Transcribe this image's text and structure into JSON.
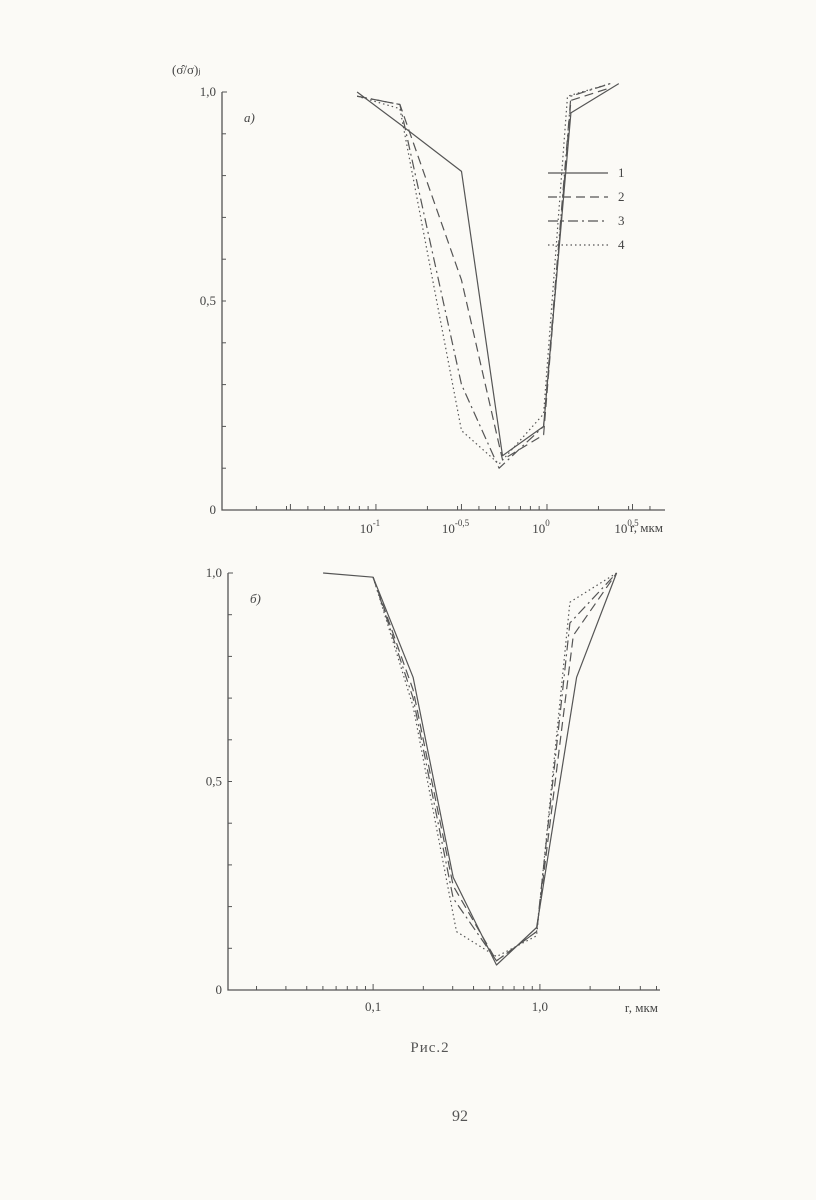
{
  "figure": {
    "caption": "Рис.2",
    "page_number": "92"
  },
  "chart_data": [
    {
      "type": "line",
      "panel_label": "а)",
      "ylabel": "(σ̂/σ)ⱼ",
      "xlabel": "r, мкм",
      "x_scale": "log10",
      "xlim_log10": [
        -1.9,
        0.69
      ],
      "ylim": [
        0,
        1.0
      ],
      "y_ticks": [
        {
          "value": 0,
          "label": "0"
        },
        {
          "value": 0.5,
          "label": "0,5"
        },
        {
          "value": 1.0,
          "label": "1,0"
        }
      ],
      "x_ticks": [
        {
          "log10": -1.0,
          "base": "10",
          "exp": "-1"
        },
        {
          "log10": -0.5,
          "base": "10",
          "exp": "-0,5"
        },
        {
          "log10": 0.0,
          "base": "10",
          "exp": "0"
        },
        {
          "log10": 0.5,
          "base": "10",
          "exp": "0,5"
        }
      ],
      "legend": {
        "placement": "upper-right",
        "entries": [
          "1",
          "2",
          "3",
          "4"
        ]
      },
      "series": [
        {
          "name": "1",
          "style": "solid",
          "x_log10": [
            -1.11,
            -0.85,
            -0.5,
            -0.26,
            -0.02,
            0.14,
            0.42
          ],
          "y": [
            1.0,
            0.92,
            0.81,
            0.13,
            0.2,
            0.95,
            1.02
          ]
        },
        {
          "name": "2",
          "style": "dashed",
          "x_log10": [
            -1.11,
            -0.86,
            -0.5,
            -0.26,
            -0.02,
            0.14,
            0.37
          ],
          "y": [
            0.99,
            0.97,
            0.55,
            0.12,
            0.18,
            0.98,
            1.01
          ]
        },
        {
          "name": "3",
          "style": "dashdot",
          "x_log10": [
            -1.11,
            -0.86,
            -0.5,
            -0.28,
            -0.02,
            0.14,
            0.37
          ],
          "y": [
            0.99,
            0.97,
            0.3,
            0.1,
            0.2,
            0.99,
            1.02
          ]
        },
        {
          "name": "4",
          "style": "dotted",
          "x_log10": [
            -1.11,
            -0.86,
            -0.5,
            -0.28,
            -0.02,
            0.12,
            0.37
          ],
          "y": [
            0.99,
            0.96,
            0.19,
            0.11,
            0.23,
            0.99,
            1.02
          ]
        }
      ]
    },
    {
      "type": "line",
      "panel_label": "б)",
      "ylabel": "",
      "xlabel": "r, мкм",
      "x_scale": "log10",
      "xlim_log10": [
        -1.87,
        0.72
      ],
      "ylim": [
        0,
        1.0
      ],
      "y_ticks": [
        {
          "value": 0,
          "label": "0"
        },
        {
          "value": 0.5,
          "label": "0,5"
        },
        {
          "value": 1.0,
          "label": "1,0"
        }
      ],
      "x_ticks": [
        {
          "log10": -1.0,
          "label": "0,1"
        },
        {
          "log10": 0.0,
          "label": "1,0"
        }
      ],
      "series": [
        {
          "name": "1",
          "style": "solid",
          "x_log10": [
            -1.3,
            -1.0,
            -0.76,
            -0.52,
            -0.26,
            -0.02,
            0.22,
            0.46
          ],
          "y": [
            1.0,
            0.99,
            0.75,
            0.27,
            0.06,
            0.15,
            0.75,
            1.0
          ]
        },
        {
          "name": "2",
          "style": "dashed",
          "x_log10": [
            -1.0,
            -0.76,
            -0.52,
            -0.26,
            -0.02,
            0.2,
            0.46
          ],
          "y": [
            0.99,
            0.72,
            0.25,
            0.07,
            0.14,
            0.85,
            1.0
          ]
        },
        {
          "name": "3",
          "style": "dashdot",
          "x_log10": [
            -1.0,
            -0.76,
            -0.52,
            -0.26,
            -0.02,
            0.18,
            0.46
          ],
          "y": [
            0.99,
            0.7,
            0.22,
            0.07,
            0.14,
            0.88,
            1.0
          ]
        },
        {
          "name": "4",
          "style": "dotted",
          "x_log10": [
            -1.0,
            -0.76,
            -0.5,
            -0.26,
            -0.02,
            0.18,
            0.46
          ],
          "y": [
            0.99,
            0.68,
            0.14,
            0.08,
            0.13,
            0.93,
            1.0
          ]
        }
      ]
    }
  ]
}
